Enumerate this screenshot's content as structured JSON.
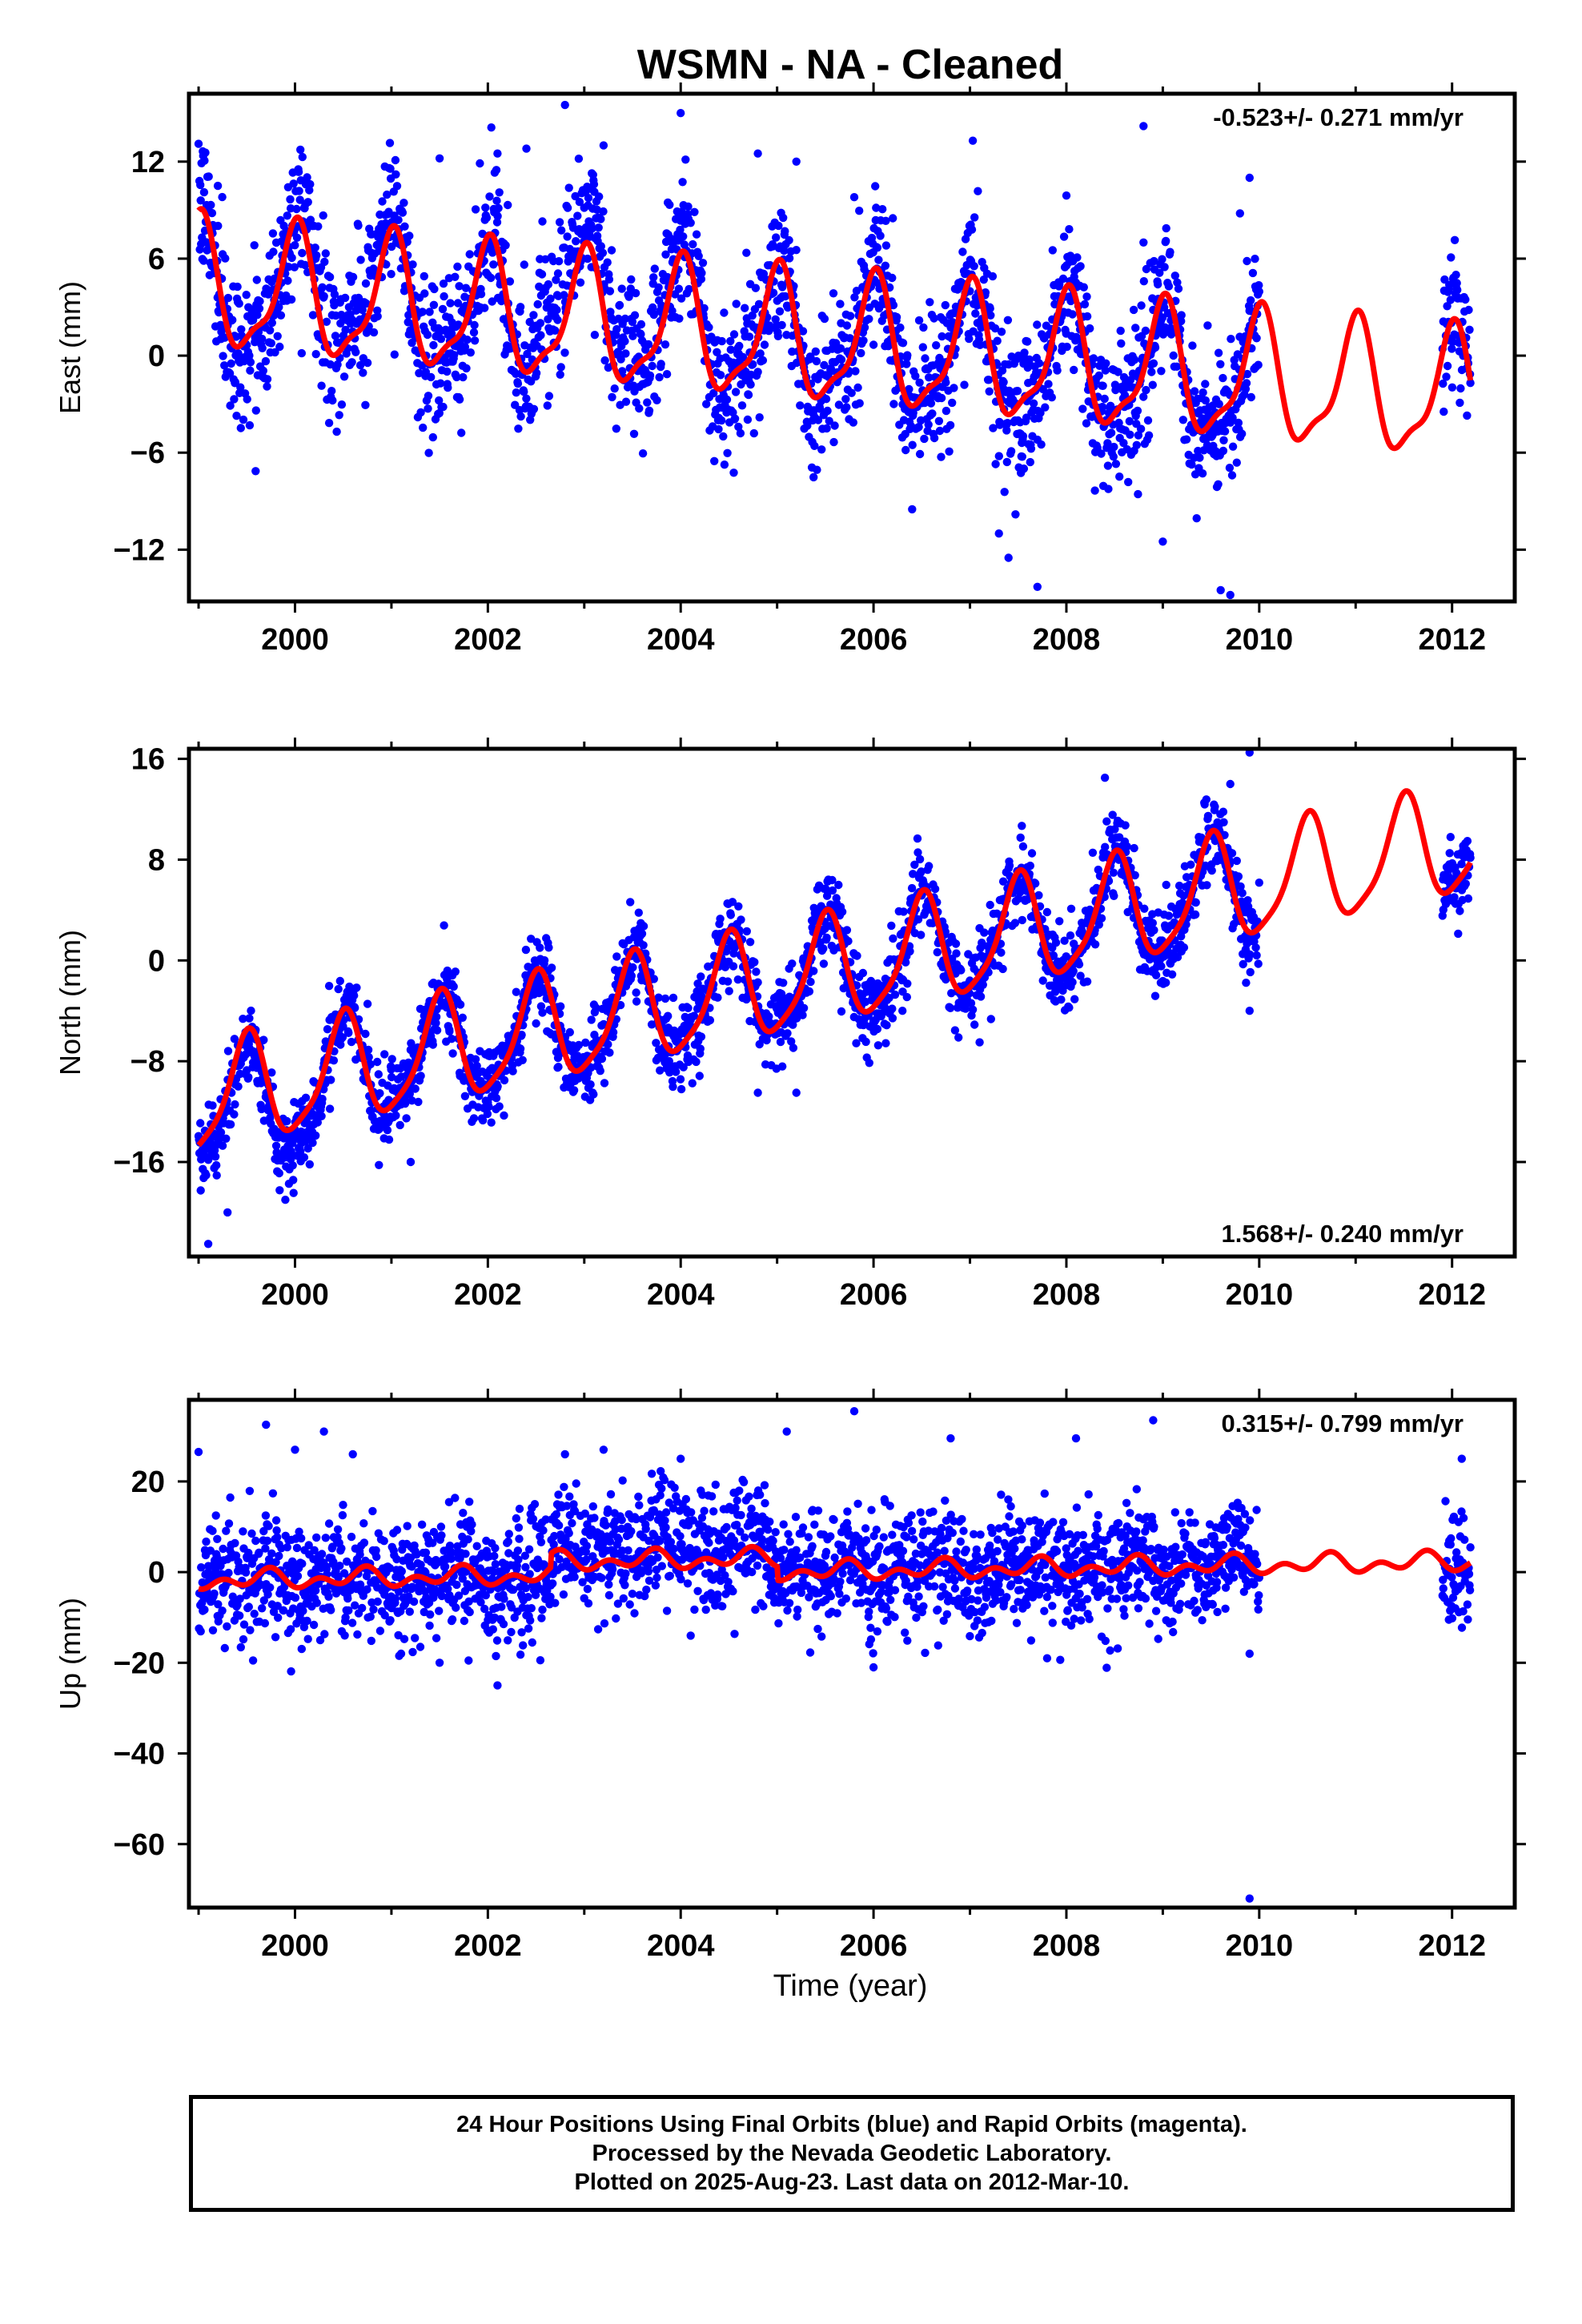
{
  "title": "WSMN  - NA - Cleaned",
  "xlabel": "Time (year)",
  "footer": {
    "lines": [
      "24 Hour Positions Using Final Orbits (blue) and Rapid Orbits (magenta).",
      "Processed by the Nevada Geodetic Laboratory.",
      "Plotted on 2025-Aug-23. Last data on 2012-Mar-10."
    ]
  },
  "colors": {
    "data": "#0000ff",
    "fit": "#ff0000",
    "frame": "#000000"
  },
  "chart_data": [
    {
      "type": "scatter",
      "ylabel": "East (mm)",
      "rate_label": "-0.523+/- 0.271 mm/yr",
      "rate_position": "top-right",
      "xlim": [
        1998.9,
        2012.65
      ],
      "ylim": [
        -15.2,
        16.2
      ],
      "xticks": [
        2000,
        2002,
        2004,
        2006,
        2008,
        2010,
        2012
      ],
      "yticks": [
        12,
        6,
        0,
        -6,
        -12
      ],
      "fit": {
        "name": "fit",
        "offset": 0.8,
        "rate": -0.523,
        "ref_year": 2005.5,
        "annual_amp": 3.8,
        "annual_phase_peak": 2000.0,
        "semiannual_amp": 1.2,
        "semiannual_phase_peak": 2000.05
      },
      "scatter": {
        "noise": 2.2,
        "mean_bias": [
          [
            2000.0,
            2001.0,
            1.5
          ],
          [
            2002.5,
            2003.5,
            2.5
          ],
          [
            2003.7,
            2004.3,
            1.5
          ]
        ]
      },
      "outliers": [
        [
          1999.0,
          13.1
        ],
        [
          1999.2,
          10.5
        ],
        [
          2001.5,
          12.2
        ],
        [
          2002.1,
          12.5
        ],
        [
          2002.4,
          12.8
        ],
        [
          2002.8,
          15.5
        ],
        [
          2003.2,
          13.0
        ],
        [
          2004.0,
          15.0
        ],
        [
          2004.8,
          12.5
        ],
        [
          2005.2,
          12.0
        ],
        [
          2005.8,
          9.8
        ],
        [
          2006.2,
          8.5
        ],
        [
          2007.4,
          -12.5
        ],
        [
          2007.7,
          -14.3
        ],
        [
          2008.0,
          9.9
        ],
        [
          2008.8,
          7.0
        ],
        [
          2008.8,
          14.2
        ],
        [
          2009.0,
          -11.5
        ],
        [
          2009.6,
          -14.5
        ],
        [
          2009.7,
          -14.8
        ],
        [
          2009.8,
          8.8
        ],
        [
          2009.9,
          11.0
        ],
        [
          2006.4,
          -9.5
        ],
        [
          2007.3,
          -11.0
        ]
      ],
      "gaps": [
        [
          2010.0,
          2011.9
        ]
      ],
      "data_range": [
        1999.0,
        2012.19
      ]
    },
    {
      "type": "scatter",
      "ylabel": "North (mm)",
      "rate_label": "1.568+/- 0.240 mm/yr",
      "rate_position": "bottom-right",
      "xlim": [
        1998.9,
        2012.65
      ],
      "ylim": [
        -23.5,
        16.8
      ],
      "xticks": [
        2000,
        2002,
        2004,
        2006,
        2008,
        2010,
        2012
      ],
      "yticks": [
        16,
        8,
        0,
        -8,
        -16
      ],
      "fit": {
        "name": "fit",
        "offset": -1.0,
        "rate": 1.568,
        "ref_year": 2005.5,
        "annual_amp": 4.2,
        "annual_phase_peak": 2000.5,
        "semiannual_amp": 0.9,
        "semiannual_phase_peak": 2000.55
      },
      "scatter": {
        "noise": 1.6,
        "mean_bias": [
          [
            1999.0,
            2000.3,
            -1.5
          ]
        ]
      },
      "outliers": [
        [
          1999.1,
          -22.5
        ],
        [
          1999.3,
          -20.0
        ],
        [
          1999.9,
          -19.0
        ],
        [
          2001.2,
          -16.0
        ],
        [
          2001.6,
          -5.5
        ],
        [
          2002.5,
          -5.0
        ],
        [
          2004.8,
          -10.5
        ],
        [
          2005.2,
          -10.5
        ],
        [
          2006.3,
          -4.0
        ],
        [
          2007.1,
          -6.5
        ],
        [
          2009.9,
          -4.0
        ],
        [
          2009.9,
          16.5
        ],
        [
          2009.7,
          14.0
        ],
        [
          2008.4,
          14.5
        ]
      ],
      "gaps": [
        [
          2010.0,
          2011.9
        ]
      ],
      "data_range": [
        1999.0,
        2012.19
      ]
    },
    {
      "type": "scatter",
      "ylabel": "Up (mm)",
      "rate_label": "0.315+/- 0.799 mm/yr",
      "rate_position": "top-right",
      "xlim": [
        1998.9,
        2012.65
      ],
      "ylim": [
        -74.0,
        38.0
      ],
      "xticks": [
        2000,
        2002,
        2004,
        2006,
        2008,
        2010,
        2012
      ],
      "yticks": [
        20,
        0,
        -20,
        -40,
        -60
      ],
      "fit": {
        "name": "fit",
        "offset": 0.2,
        "rate": 0.315,
        "ref_year": 2005.5,
        "annual_amp": 1.3,
        "annual_phase_peak": 2000.7,
        "semiannual_amp": 1.4,
        "semiannual_phase_peak": 2000.75,
        "step": [
          [
            2002.65,
            2005.0,
            3.0
          ]
        ]
      },
      "scatter": {
        "noise": 6.2,
        "mean_bias": [
          [
            2002.7,
            2004.9,
            4.0
          ]
        ]
      },
      "outliers": [
        [
          1999.0,
          26.5
        ],
        [
          1999.7,
          32.5
        ],
        [
          2000.3,
          31.0
        ],
        [
          2000.0,
          27.0
        ],
        [
          2000.6,
          26.0
        ],
        [
          2001.1,
          -18.0
        ],
        [
          2001.5,
          -20.0
        ],
        [
          2001.8,
          -19.5
        ],
        [
          2002.1,
          -25.0
        ],
        [
          2002.8,
          26.0
        ],
        [
          2003.2,
          27.0
        ],
        [
          2004.0,
          25.0
        ],
        [
          2005.1,
          31.0
        ],
        [
          2005.8,
          35.5
        ],
        [
          2006.0,
          -21.0
        ],
        [
          2006.8,
          29.5
        ],
        [
          2007.8,
          -19.0
        ],
        [
          2008.1,
          29.5
        ],
        [
          2008.9,
          33.5
        ],
        [
          2009.9,
          -18.0
        ],
        [
          2009.9,
          -72.0
        ],
        [
          2012.1,
          25.0
        ]
      ],
      "gaps": [
        [
          2010.0,
          2011.9
        ]
      ],
      "data_range": [
        1999.0,
        2012.19
      ]
    }
  ]
}
